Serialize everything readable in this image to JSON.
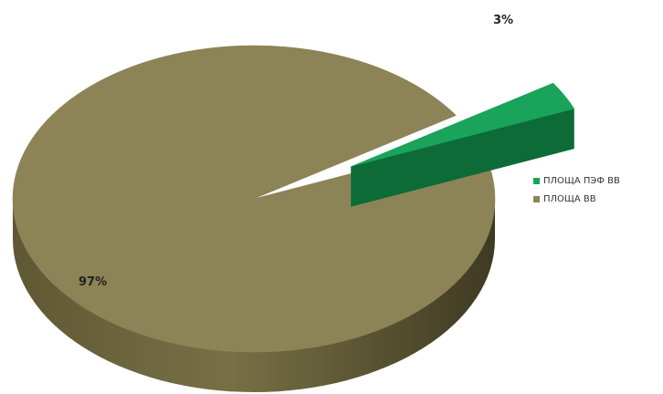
{
  "chart_data": {
    "type": "pie",
    "style": "3d",
    "categories": [
      "ПЛОЩА ПЭФ ВВ",
      "ПЛОЩА ВВ"
    ],
    "values": [
      3,
      97
    ],
    "value_unit": "%",
    "data_labels": [
      "3%",
      "97%"
    ],
    "colors": [
      "#1aa35a",
      "#8c8356"
    ],
    "exploded": [
      true,
      false
    ],
    "legend_position": "right",
    "title": ""
  }
}
